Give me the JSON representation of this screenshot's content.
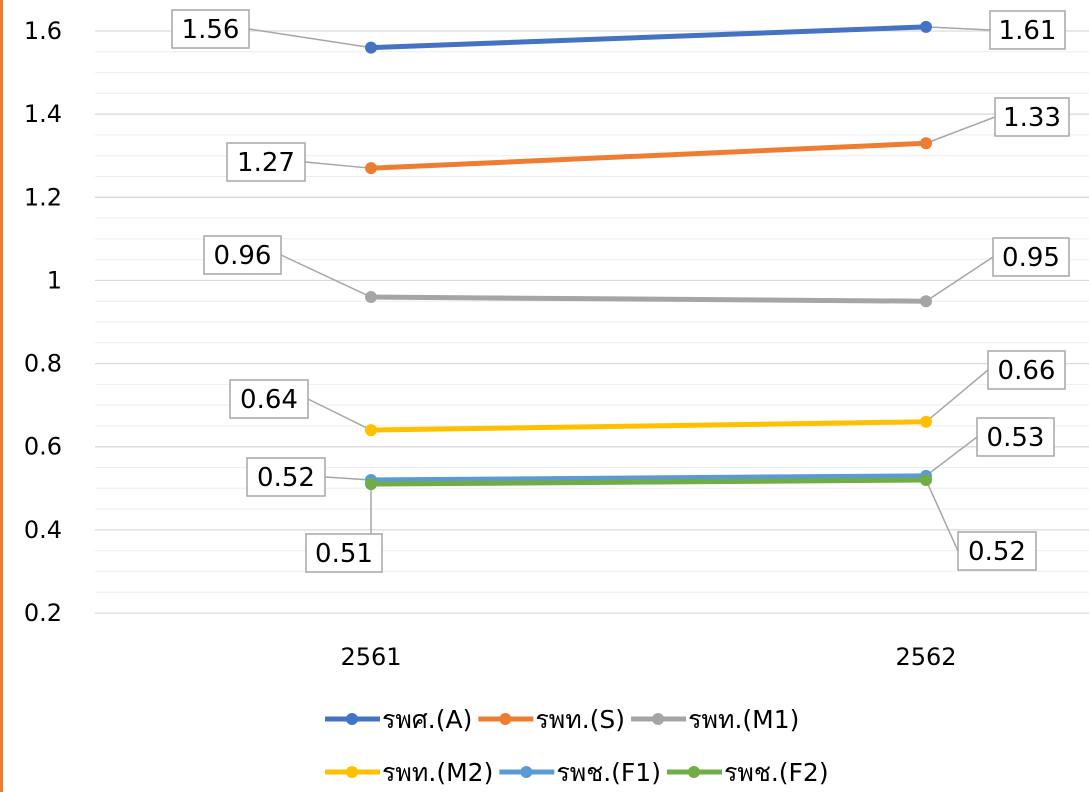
{
  "chart_data": {
    "type": "line",
    "categories": [
      "2561",
      "2562"
    ],
    "ylim": [
      0.2,
      1.6
    ],
    "yticks": [
      "0.2",
      "0.4",
      "0.6",
      "0.8",
      "1",
      "1.2",
      "1.4",
      "1.6"
    ],
    "grid": true,
    "legend_position": "bottom",
    "series": [
      {
        "name": "รพศ.(A)",
        "color": "#4472C4",
        "values": [
          1.56,
          1.61
        ],
        "labels": [
          "1.56",
          "1.61"
        ]
      },
      {
        "name": "รพท.(S)",
        "color": "#ED7D31",
        "values": [
          1.27,
          1.33
        ],
        "labels": [
          "1.27",
          "1.33"
        ]
      },
      {
        "name": "รพท.(M1)",
        "color": "#A5A5A5",
        "values": [
          0.96,
          0.95
        ],
        "labels": [
          "0.96",
          "0.95"
        ]
      },
      {
        "name": "รพท.(M2)",
        "color": "#FFC000",
        "values": [
          0.64,
          0.66
        ],
        "labels": [
          "0.64",
          "0.66"
        ]
      },
      {
        "name": "รพช.(F1)",
        "color": "#5B9BD5",
        "values": [
          0.52,
          0.53
        ],
        "labels": [
          "0.52",
          "0.53"
        ]
      },
      {
        "name": "รพช.(F2)",
        "color": "#70AD47",
        "values": [
          0.51,
          0.52
        ],
        "labels": [
          "0.51",
          "0.52"
        ]
      }
    ]
  }
}
